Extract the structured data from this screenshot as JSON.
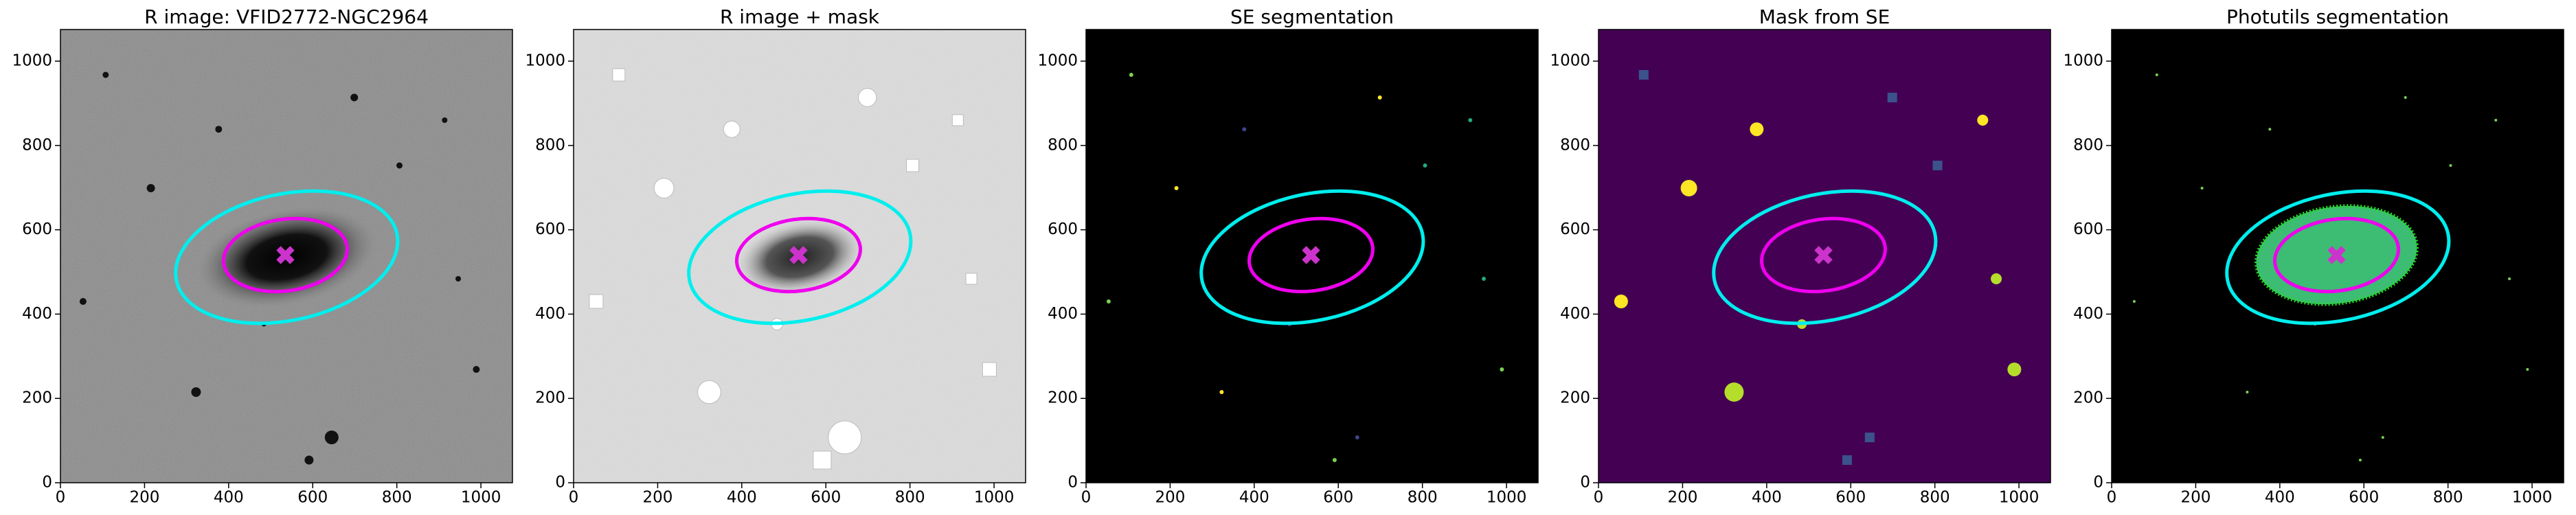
{
  "chart_data": [
    {
      "type": "image",
      "title": "R image: VFID2772-NGC2964",
      "cmap": "gray",
      "xlim": [
        0,
        1075
      ],
      "ylim": [
        0,
        1075
      ],
      "xticks": [
        0,
        200,
        400,
        600,
        800,
        1000
      ],
      "yticks": [
        0,
        200,
        400,
        600,
        800,
        1000
      ],
      "ellipses": [
        {
          "color": "#00eeee",
          "cx": 538,
          "cy": 535,
          "rx": 268,
          "ry": 150,
          "angle": 12
        },
        {
          "color": "#ee00ee",
          "cx": 535,
          "cy": 540,
          "rx": 148,
          "ry": 85,
          "angle": 8
        }
      ],
      "center": {
        "color": "#cc33cc",
        "x": 535,
        "y": 540
      }
    },
    {
      "type": "image",
      "title": "R image + mask",
      "cmap": "gray_r",
      "xlim": [
        0,
        1075
      ],
      "ylim": [
        0,
        1075
      ],
      "xticks": [
        0,
        200,
        400,
        600,
        800,
        1000
      ],
      "yticks": [
        0,
        200,
        400,
        600,
        800,
        1000
      ],
      "ellipses": [
        {
          "color": "#00eeee",
          "cx": 538,
          "cy": 535,
          "rx": 268,
          "ry": 150,
          "angle": 12
        },
        {
          "color": "#ee00ee",
          "cx": 535,
          "cy": 540,
          "rx": 148,
          "ry": 85,
          "angle": 8
        }
      ],
      "center": {
        "color": "#cc33cc",
        "x": 535,
        "y": 540
      }
    },
    {
      "type": "image",
      "title": "SE segmentation",
      "cmap": "segmentation",
      "xlim": [
        0,
        1075
      ],
      "ylim": [
        0,
        1075
      ],
      "xticks": [
        0,
        200,
        400,
        600,
        800,
        1000
      ],
      "yticks": [
        0,
        200,
        400,
        600,
        800,
        1000
      ],
      "ellipses": [
        {
          "color": "#00eeee",
          "cx": 538,
          "cy": 535,
          "rx": 268,
          "ry": 150,
          "angle": 12
        },
        {
          "color": "#ee00ee",
          "cx": 535,
          "cy": 540,
          "rx": 148,
          "ry": 85,
          "angle": 8
        }
      ],
      "center": {
        "color": "#cc33cc",
        "x": 535,
        "y": 540
      }
    },
    {
      "type": "image",
      "title": "Mask from SE",
      "cmap": "viridis",
      "xlim": [
        0,
        1075
      ],
      "ylim": [
        0,
        1075
      ],
      "xticks": [
        0,
        200,
        400,
        600,
        800,
        1000
      ],
      "yticks": [
        0,
        200,
        400,
        600,
        800,
        1000
      ],
      "ellipses": [
        {
          "color": "#00eeee",
          "cx": 538,
          "cy": 535,
          "rx": 268,
          "ry": 150,
          "angle": 12
        },
        {
          "color": "#ee00ee",
          "cx": 535,
          "cy": 540,
          "rx": 148,
          "ry": 85,
          "angle": 8
        }
      ],
      "center": {
        "color": "#cc33cc",
        "x": 535,
        "y": 540
      }
    },
    {
      "type": "image",
      "title": "Photutils segmentation",
      "cmap": "photutils",
      "xlim": [
        0,
        1075
      ],
      "ylim": [
        0,
        1075
      ],
      "xticks": [
        0,
        200,
        400,
        600,
        800,
        1000
      ],
      "yticks": [
        0,
        200,
        400,
        600,
        800,
        1000
      ],
      "ellipses": [
        {
          "color": "#00eeee",
          "cx": 538,
          "cy": 535,
          "rx": 268,
          "ry": 150,
          "angle": 12
        },
        {
          "color": "#ee00ee",
          "cx": 535,
          "cy": 540,
          "rx": 148,
          "ry": 85,
          "angle": 8
        }
      ],
      "center": {
        "color": "#cc33cc",
        "x": 535,
        "y": 540
      }
    }
  ]
}
